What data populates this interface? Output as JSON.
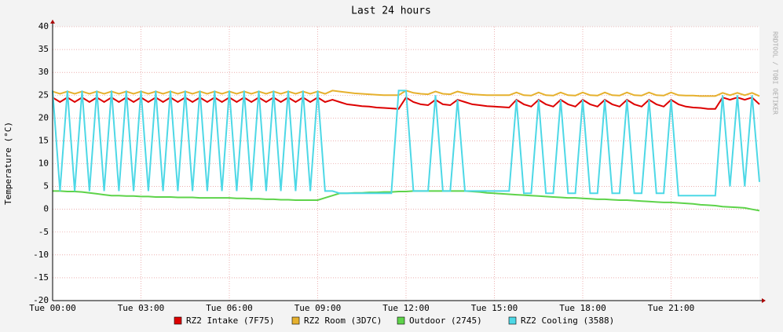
{
  "chart_data": {
    "type": "line",
    "title": "Last 24 hours",
    "y_label": "Temperature (°C)",
    "side_text": "RRDTOOL / TOBI OETIKER",
    "x": [
      0,
      0.25,
      0.5,
      0.75,
      1,
      1.25,
      1.5,
      1.75,
      2,
      2.25,
      2.5,
      2.75,
      3,
      3.25,
      3.5,
      3.75,
      4,
      4.25,
      4.5,
      4.75,
      5,
      5.25,
      5.5,
      5.75,
      6,
      6.25,
      6.5,
      6.75,
      7,
      7.25,
      7.5,
      7.75,
      8,
      8.25,
      8.5,
      8.75,
      9,
      9.25,
      9.5,
      9.75,
      10,
      10.25,
      10.5,
      10.75,
      11,
      11.25,
      11.5,
      11.75,
      12,
      12.25,
      12.5,
      12.75,
      13,
      13.25,
      13.5,
      13.75,
      14,
      14.25,
      14.5,
      14.75,
      15,
      15.25,
      15.5,
      15.75,
      16,
      16.25,
      16.5,
      16.75,
      17,
      17.25,
      17.5,
      17.75,
      18,
      18.25,
      18.5,
      18.75,
      19,
      19.25,
      19.5,
      19.75,
      20,
      20.25,
      20.5,
      20.75,
      21,
      21.25,
      21.5,
      21.75,
      22,
      22.25,
      22.5,
      22.75,
      23,
      23.25,
      23.5,
      23.75,
      24
    ],
    "series": [
      {
        "name": "RZ2 Intake (7F75)",
        "color": "#dd0000",
        "values": [
          24.5,
          23.5,
          24.5,
          23.5,
          24.5,
          23.5,
          24.5,
          23.5,
          24.5,
          23.5,
          24.5,
          23.5,
          24.5,
          23.5,
          24.5,
          23.5,
          24.5,
          23.5,
          24.5,
          23.5,
          24.5,
          23.5,
          24.5,
          23.5,
          24.5,
          23.5,
          24.5,
          23.5,
          24.5,
          23.5,
          24.5,
          23.5,
          24.5,
          23.5,
          24.5,
          23.5,
          24.5,
          23.5,
          24,
          23.5,
          23,
          22.8,
          22.6,
          22.5,
          22.3,
          22.2,
          22.1,
          22,
          24.5,
          23.5,
          23,
          22.8,
          24,
          23,
          22.8,
          24,
          23.5,
          23,
          22.8,
          22.6,
          22.5,
          22.4,
          22.3,
          24,
          23,
          22.5,
          24,
          23,
          22.5,
          24,
          23,
          22.5,
          24,
          23,
          22.5,
          24,
          23,
          22.5,
          24,
          23,
          22.5,
          24,
          23,
          22.5,
          24,
          23,
          22.5,
          22.3,
          22.2,
          22,
          22,
          24.5,
          24,
          24.5,
          24,
          24.5,
          23
        ]
      },
      {
        "name": "RZ2 Room (3D7C)",
        "color": "#e6b12e",
        "values": [
          25.8,
          25.3,
          25.8,
          25.3,
          25.8,
          25.3,
          25.8,
          25.3,
          25.8,
          25.3,
          25.8,
          25.3,
          25.8,
          25.3,
          25.8,
          25.3,
          25.8,
          25.3,
          25.8,
          25.3,
          25.8,
          25.3,
          25.8,
          25.3,
          25.8,
          25.3,
          25.8,
          25.3,
          25.8,
          25.3,
          25.8,
          25.3,
          25.8,
          25.3,
          25.8,
          25.3,
          25.8,
          25.3,
          26,
          25.8,
          25.6,
          25.4,
          25.3,
          25.2,
          25.1,
          25,
          25,
          25,
          26,
          25.5,
          25.3,
          25.2,
          25.8,
          25.3,
          25.2,
          25.8,
          25.4,
          25.2,
          25.1,
          25,
          25,
          25,
          25,
          25.6,
          25,
          24.9,
          25.6,
          25,
          24.9,
          25.6,
          25,
          24.9,
          25.6,
          25,
          24.9,
          25.6,
          25,
          24.9,
          25.6,
          25,
          24.9,
          25.6,
          25,
          24.9,
          25.6,
          25,
          24.9,
          24.9,
          24.8,
          24.8,
          24.8,
          25.5,
          25,
          25.5,
          25,
          25.5,
          24.8
        ]
      },
      {
        "name": "Outdoor (2745)",
        "color": "#5ed34a",
        "values": [
          4,
          4,
          3.9,
          3.9,
          3.8,
          3.6,
          3.4,
          3.2,
          3,
          3,
          2.9,
          2.9,
          2.8,
          2.8,
          2.7,
          2.7,
          2.7,
          2.6,
          2.6,
          2.6,
          2.5,
          2.5,
          2.5,
          2.5,
          2.5,
          2.4,
          2.4,
          2.3,
          2.3,
          2.2,
          2.2,
          2.1,
          2.1,
          2,
          2,
          2,
          2,
          2.5,
          3,
          3.5,
          3.5,
          3.6,
          3.6,
          3.7,
          3.7,
          3.8,
          3.8,
          3.9,
          3.9,
          4,
          4,
          4,
          4,
          4,
          4,
          4,
          4,
          3.9,
          3.8,
          3.6,
          3.5,
          3.4,
          3.3,
          3.2,
          3.1,
          3,
          2.9,
          2.8,
          2.7,
          2.6,
          2.5,
          2.5,
          2.4,
          2.3,
          2.2,
          2.2,
          2.1,
          2,
          2,
          1.9,
          1.8,
          1.7,
          1.6,
          1.5,
          1.5,
          1.4,
          1.3,
          1.2,
          1,
          0.9,
          0.8,
          0.6,
          0.5,
          0.4,
          0.3,
          0,
          -0.3
        ]
      },
      {
        "name": "RZ2 Cooling (3588)",
        "color": "#4dd8e6",
        "values": [
          26,
          4,
          26,
          4,
          26,
          4,
          26,
          4,
          26,
          4,
          26,
          4,
          26,
          4,
          26,
          4,
          26,
          4,
          26,
          4,
          26,
          4,
          26,
          4,
          26,
          4,
          26,
          4,
          26,
          4,
          26,
          4,
          26,
          4,
          26,
          4,
          26,
          4,
          4,
          3.5,
          3.5,
          3.5,
          3.5,
          3.5,
          3.5,
          3.5,
          3.5,
          26,
          26,
          4,
          4,
          4,
          25,
          4,
          4,
          24,
          4,
          4,
          4,
          4,
          4,
          4,
          4,
          24,
          3.5,
          3.5,
          24,
          3.5,
          3.5,
          24,
          3.5,
          3.5,
          24,
          3.5,
          3.5,
          24,
          3.5,
          3.5,
          24,
          3.5,
          3.5,
          24,
          3.5,
          3.5,
          24,
          3,
          3,
          3,
          3,
          3,
          3,
          25,
          5,
          25,
          5,
          25,
          6
        ]
      }
    ],
    "xlim": [
      0,
      24
    ],
    "xticks": [
      {
        "value": 0,
        "label": "Tue 00:00"
      },
      {
        "value": 3,
        "label": "Tue 03:00"
      },
      {
        "value": 6,
        "label": "Tue 06:00"
      },
      {
        "value": 9,
        "label": "Tue 09:00"
      },
      {
        "value": 12,
        "label": "Tue 12:00"
      },
      {
        "value": 15,
        "label": "Tue 15:00"
      },
      {
        "value": 18,
        "label": "Tue 18:00"
      },
      {
        "value": 21,
        "label": "Tue 21:00"
      }
    ],
    "ylim": [
      -20,
      40
    ],
    "yticks": [
      -20,
      -15,
      -10,
      -5,
      0,
      5,
      10,
      15,
      20,
      25,
      30,
      35,
      40
    ],
    "grid": true
  }
}
